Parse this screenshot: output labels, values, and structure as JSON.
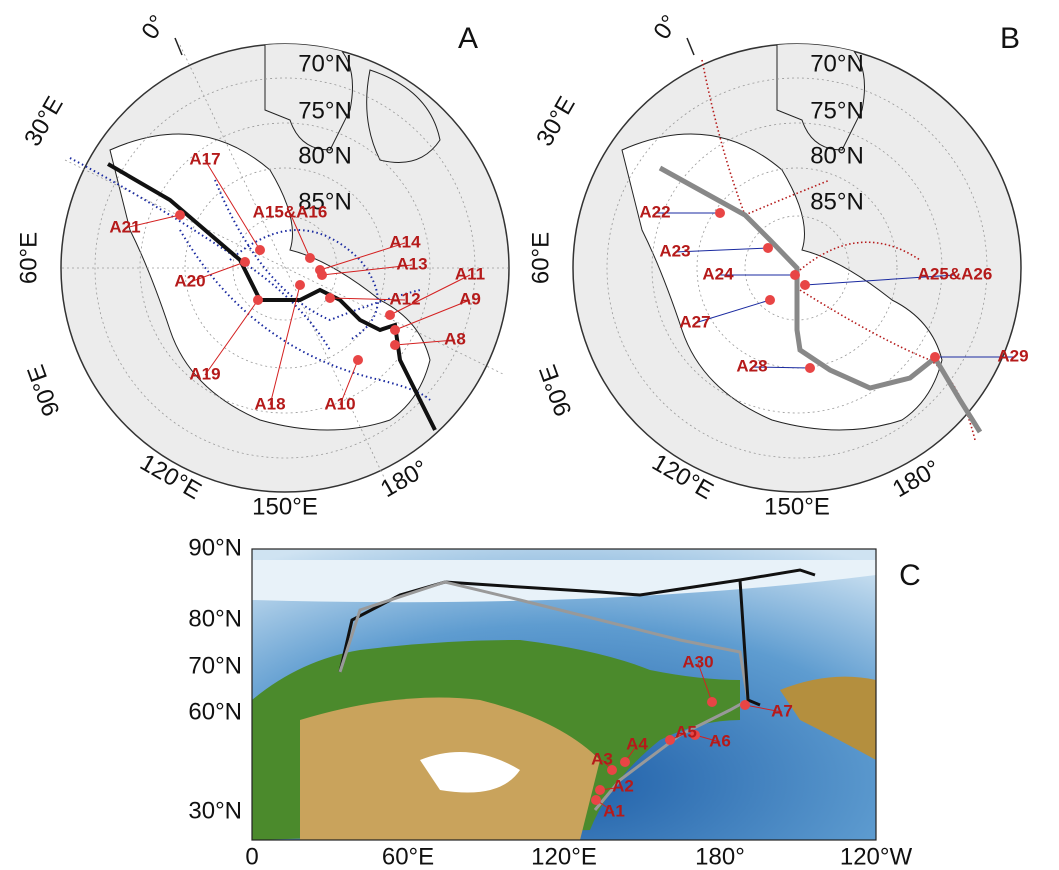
{
  "panels": [
    {
      "letter": "A",
      "lat_labels": [
        "70°N",
        "75°N",
        "80°N",
        "85°N"
      ],
      "lon_labels": [
        "0°",
        "30°E",
        "60°E",
        "90°E",
        "120°E",
        "150°E",
        "180°"
      ],
      "sites": [
        "A21",
        "A17",
        "A15&A16",
        "A14",
        "A13",
        "A12",
        "A11",
        "A9",
        "A8",
        "A20",
        "A19",
        "A18",
        "A10"
      ]
    },
    {
      "letter": "B",
      "lat_labels": [
        "70°N",
        "75°N",
        "80°N",
        "85°N"
      ],
      "lon_labels": [
        "0°",
        "30°E",
        "60°E",
        "90°E",
        "120°E",
        "150°E",
        "180°"
      ],
      "sites": [
        "A22",
        "A23",
        "A24",
        "A25&A26",
        "A27",
        "A28",
        "A29"
      ]
    },
    {
      "letter": "C",
      "y_labels": [
        "90°N",
        "80°N",
        "70°N",
        "60°N",
        "30°N"
      ],
      "x_labels": [
        "0",
        "60°E",
        "120°E",
        "180°",
        "120°W"
      ],
      "sites": [
        "A30",
        "A7",
        "A6",
        "A5",
        "A4",
        "A3",
        "A2",
        "A1"
      ]
    }
  ]
}
